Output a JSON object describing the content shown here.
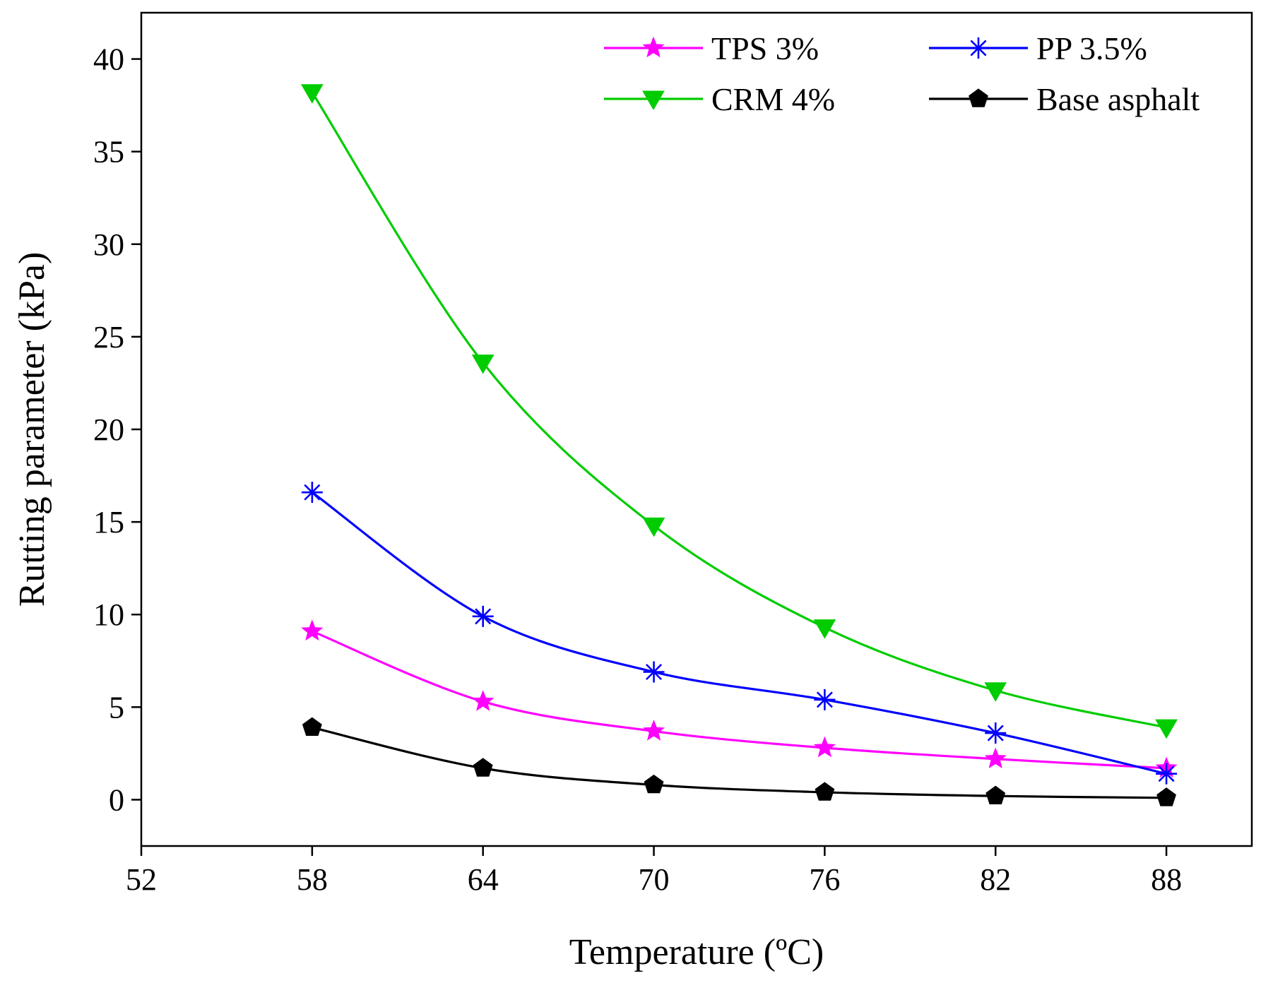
{
  "chart_data": {
    "type": "line",
    "title": "",
    "xlabel": "Temperature (ºC)",
    "ylabel": "Rutting parameter (kPa)",
    "xlim": [
      52,
      91
    ],
    "ylim": [
      -2.5,
      42.5
    ],
    "x_ticks": [
      52,
      58,
      64,
      70,
      76,
      82,
      88
    ],
    "y_ticks": [
      0,
      5,
      10,
      15,
      20,
      25,
      30,
      35,
      40
    ],
    "x_tick_labels": [
      "52",
      "58",
      "64",
      "70",
      "76",
      "82",
      "88"
    ],
    "y_tick_labels": [
      "0",
      "5",
      "10",
      "15",
      "20",
      "25",
      "30",
      "35",
      "40"
    ],
    "x": [
      58,
      64,
      70,
      76,
      82,
      88
    ],
    "legend_position": "top-right",
    "series": [
      {
        "name": "TPS 3%",
        "color": "#ff00ff",
        "marker": "star",
        "values": [
          9.1,
          5.3,
          3.7,
          2.8,
          2.2,
          1.7
        ]
      },
      {
        "name": "PP 3.5%",
        "color": "#0000ff",
        "marker": "asterisk",
        "values": [
          16.6,
          9.9,
          6.9,
          5.4,
          3.6,
          1.4
        ]
      },
      {
        "name": "CRM 4%",
        "color": "#00cc00",
        "marker": "triangle-down",
        "values": [
          38.2,
          23.6,
          14.8,
          9.3,
          5.9,
          3.9
        ]
      },
      {
        "name": "Base asphalt",
        "color": "#000000",
        "marker": "pentagon",
        "values": [
          3.9,
          1.7,
          0.8,
          0.4,
          0.2,
          0.1
        ]
      }
    ]
  }
}
